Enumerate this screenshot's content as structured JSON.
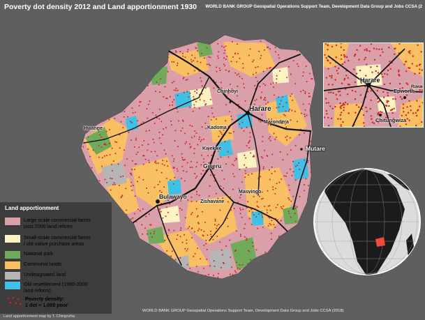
{
  "title": "Poverty dot density 2012 and Land apportionment 1930",
  "credit_top": "WORLD BANK GROUP Geospatial Operations Support Team, Development Data Group and Jobs CCSA (2",
  "credit_bottom": "WORLD BANK GROUP Geospatial Operations Support Team, Development Data Group and Jobs CCSA (2018)",
  "author": "Land apportionment map by T. Chingozha",
  "legend": {
    "title": "Land apportionment",
    "items": [
      {
        "label_line1": "Large scale commercial farms",
        "label_line2": "post 2000 land reform",
        "color": "#d9a0aa"
      },
      {
        "label_line1": "Small-scale commercial farms",
        "label_line2": "/ old native purchase areas",
        "color": "#fdf3c2"
      },
      {
        "label_line1": "National park",
        "label_line2": "",
        "color": "#6fab5a"
      },
      {
        "label_line1": "Communal lands",
        "label_line2": "",
        "color": "#f8c062"
      },
      {
        "label_line1": "Undesignated land",
        "label_line2": "",
        "color": "#b5b5b5"
      },
      {
        "label_line1": "Old resettlement (1980-2000",
        "label_line2": "land reform)",
        "color": "#3ec1e6"
      }
    ],
    "dots_label_line1": "Poverty density:",
    "dots_label_line2": "1 dot = 1,000 poor",
    "dot_color": "#d32222"
  },
  "cities": {
    "harare": "Harare",
    "chinhoyi": "Chinhoyi",
    "hwange": "Hwange",
    "kadoma": "Kadoma",
    "marondera": "Marondera",
    "kwekwe": "Kwekwe",
    "gweru": "Gweru",
    "mutare": "Mutare",
    "masvingo": "Masvingo",
    "bulawayo": "Bulawayo",
    "zishavane": "Zishavane"
  },
  "inset": {
    "harare": "Harare",
    "epworth": "Epworth",
    "ruwa": "Ruwa",
    "chitungwiza": "Chitungwiza"
  },
  "colors": {
    "background": "#5f5f5f",
    "land": "#d9a0aa",
    "communal": "#f8c062",
    "park": "#6fab5a",
    "resettlement": "#3ec1e6",
    "undesignated": "#b5b5b5",
    "dots": "#d32222",
    "roads": "#111111"
  }
}
